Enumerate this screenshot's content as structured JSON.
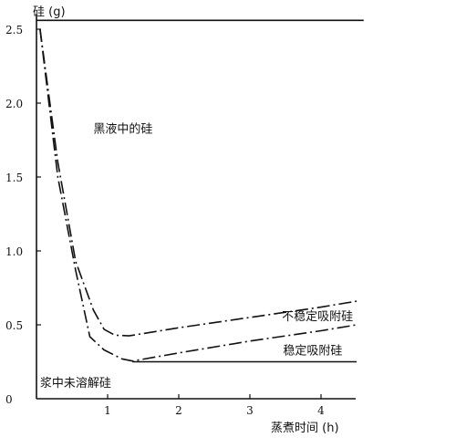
{
  "chart_data": {
    "type": "line",
    "ylabel": "硅 (g)",
    "xlabel": "蒸煮时间 (h)",
    "xlim": [
      0,
      4.6
    ],
    "ylim": [
      0,
      2.6
    ],
    "x_ticks": [
      {
        "value": 1,
        "label": "1"
      },
      {
        "value": 2,
        "label": "2"
      },
      {
        "value": 3,
        "label": "3"
      },
      {
        "value": 4,
        "label": "4"
      }
    ],
    "y_ticks": [
      {
        "value": 0,
        "label": "0"
      },
      {
        "value": 0.5,
        "label": "0.5"
      },
      {
        "value": 1.0,
        "label": "1.0"
      },
      {
        "value": 1.5,
        "label": "1.5"
      },
      {
        "value": 2.0,
        "label": "2.0"
      },
      {
        "value": 2.5,
        "label": "2.5"
      }
    ],
    "series": [
      {
        "name": "不稳定吸附硅",
        "style": "dashdot",
        "points": [
          [
            0.05,
            2.5
          ],
          [
            0.3,
            1.6
          ],
          [
            0.55,
            0.93
          ],
          [
            0.8,
            0.6
          ],
          [
            0.95,
            0.47
          ],
          [
            1.1,
            0.43
          ],
          [
            1.3,
            0.425
          ],
          [
            2.0,
            0.48
          ],
          [
            3.0,
            0.55
          ],
          [
            4.0,
            0.62
          ],
          [
            4.5,
            0.66
          ]
        ]
      },
      {
        "name": "稳定吸附硅",
        "style": "dashdot",
        "points": [
          [
            0.05,
            2.5
          ],
          [
            0.3,
            1.5
          ],
          [
            0.55,
            0.87
          ],
          [
            0.75,
            0.42
          ],
          [
            0.95,
            0.33
          ],
          [
            1.2,
            0.27
          ],
          [
            1.35,
            0.255
          ],
          [
            2.0,
            0.31
          ],
          [
            3.0,
            0.39
          ],
          [
            4.0,
            0.46
          ],
          [
            4.5,
            0.5
          ]
        ]
      },
      {
        "name": "浆中未溶解硅",
        "style": "solid",
        "points": [
          [
            1.35,
            0.25
          ],
          [
            4.5,
            0.25
          ]
        ]
      },
      {
        "name": "黑液中的硅",
        "style": "solid",
        "points": [
          [
            0.0,
            2.56
          ],
          [
            4.6,
            2.56
          ]
        ]
      }
    ],
    "annotations": [
      {
        "text": "黑液中的硅",
        "x": 0.8,
        "y": 1.8
      },
      {
        "text": "不稳定吸附硅",
        "x": 4.45,
        "y": 0.53
      },
      {
        "text": "稳定吸附硅",
        "x": 4.3,
        "y": 0.3
      },
      {
        "text": "浆中未溶解硅",
        "x": 0.05,
        "y": 0.08
      }
    ]
  }
}
